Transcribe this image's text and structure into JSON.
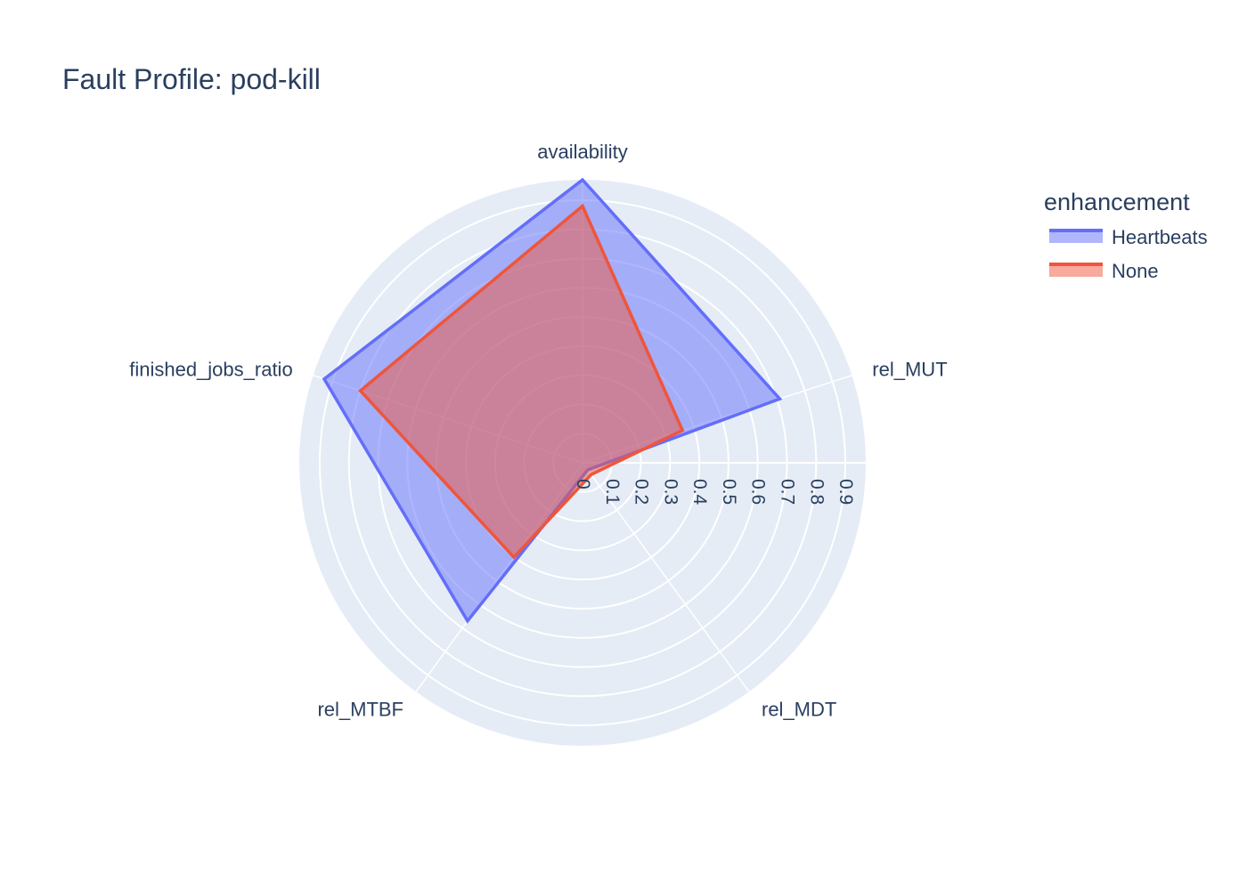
{
  "chart_data": {
    "type": "radar",
    "title": "Fault Profile: pod-kill",
    "axes": [
      "availability",
      "rel_MUT",
      "rel_MDT",
      "rel_MTBF",
      "finished_jobs_ratio"
    ],
    "radial_range": [
      0,
      0.97
    ],
    "radial_ticks": [
      0,
      0.1,
      0.2,
      0.3,
      0.4,
      0.5,
      0.6,
      0.7,
      0.8,
      0.9
    ],
    "radial_tick_labels": [
      "0",
      "0.1",
      "0.2",
      "0.3",
      "0.4",
      "0.5",
      "0.6",
      "0.7",
      "0.8",
      "0.9"
    ],
    "grid": true,
    "legend": {
      "title": "enhancement",
      "position": "top-right"
    },
    "series": [
      {
        "name": "Heartbeats",
        "values": [
          0.97,
          0.71,
          0.03,
          0.67,
          0.93
        ],
        "color": "#636efa",
        "fill": "rgba(99,110,250,0.5)"
      },
      {
        "name": "None",
        "values": [
          0.88,
          0.36,
          0.05,
          0.4,
          0.8
        ],
        "color": "#ef553b",
        "fill": "rgba(239,85,59,0.5)"
      }
    ]
  },
  "colors": {
    "polar_background": "#e5ecf6",
    "grid_line": "#ffffff",
    "text": "#2a3f5f"
  }
}
